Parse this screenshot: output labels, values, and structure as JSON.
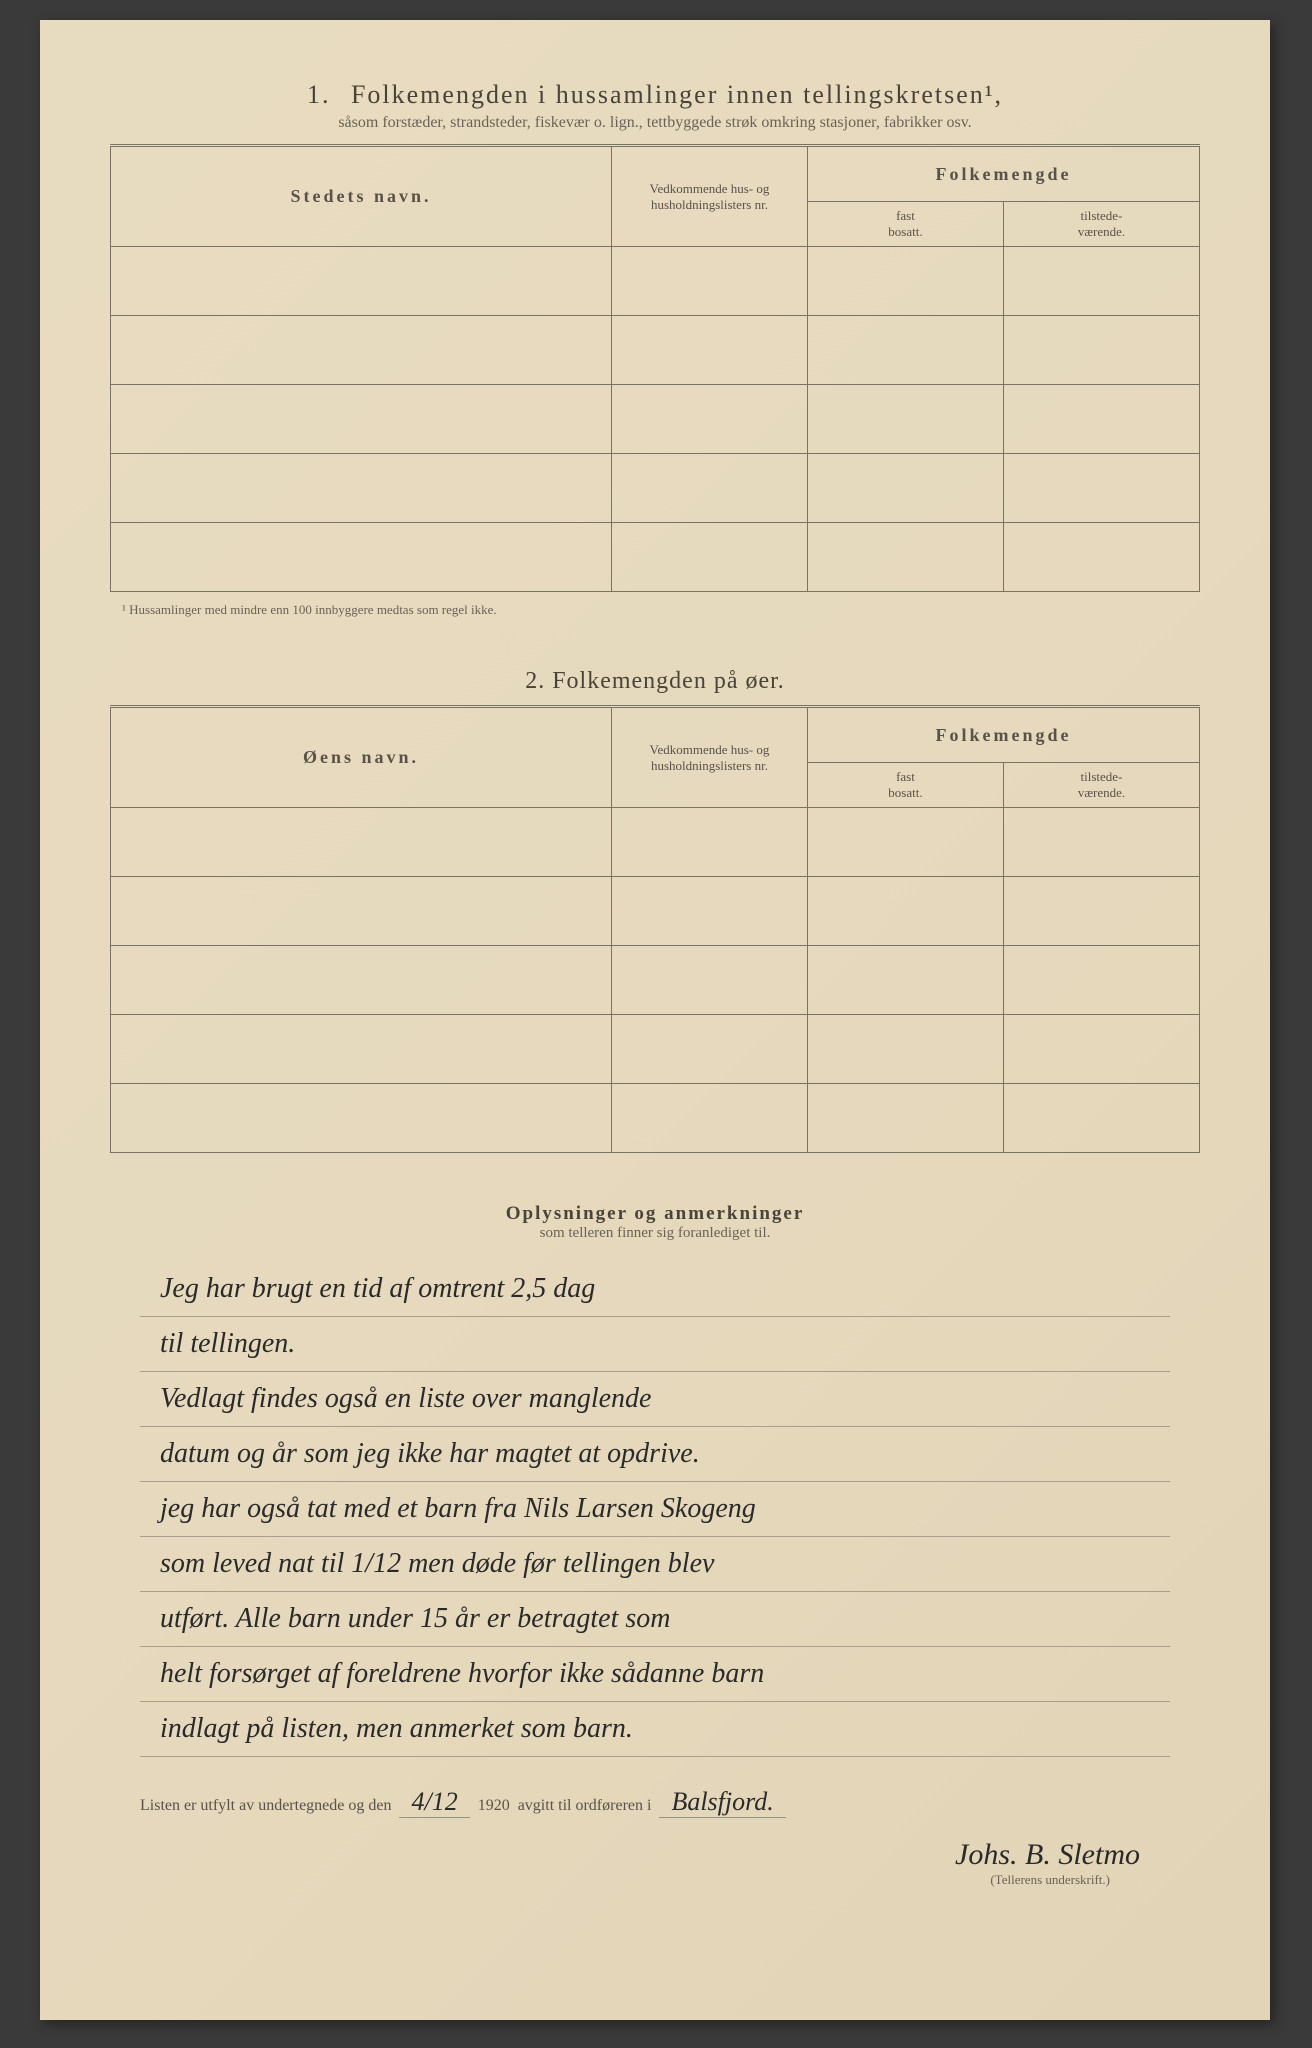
{
  "section1": {
    "number": "1.",
    "title": "Folkemengden i hussamlinger innen tellingskretsen¹,",
    "subtitle": "såsom forstæder, strandsteder, fiskevær o. lign., tettbyggede strøk omkring stasjoner, fabrikker osv.",
    "headers": {
      "name": "Stedets navn.",
      "lists": "Vedkommende hus- og husholdningslisters nr.",
      "pop_group": "Folkemengde",
      "fast": "fast",
      "fast2": "bosatt.",
      "tilstede": "tilstede-",
      "tilstede2": "værende."
    },
    "footnote": "¹ Hussamlinger med mindre enn 100 innbyggere medtas som regel ikke."
  },
  "section2": {
    "number": "2.",
    "title": "Folkemengden på øer.",
    "headers": {
      "name": "Øens navn.",
      "lists": "Vedkommende hus- og husholdningslisters nr.",
      "pop_group": "Folkemengde",
      "fast": "fast",
      "fast2": "bosatt.",
      "tilstede": "tilstede-",
      "tilstede2": "værende."
    }
  },
  "oplysninger": {
    "heading": "Oplysninger og anmerkninger",
    "sub": "som telleren finner sig foranlediget til.",
    "lines": [
      "Jeg har brugt en tid af omtrent 2,5 dag",
      "til tellingen.",
      "Vedlagt findes også en liste over manglende",
      "datum og år som jeg ikke har magtet at opdrive.",
      "jeg har også tat med et barn fra Nils Larsen Skogeng",
      "som leved nat til 1/12 men døde før tellingen blev",
      "utført. Alle barn under 15 år er betragtet som",
      "helt forsørget af foreldrene hvorfor ikke sådanne barn",
      "indlagt på listen, men anmerket som barn."
    ]
  },
  "bottom": {
    "prefix": "Listen er utfylt av undertegnede og den",
    "date": "4/12",
    "year": "1920",
    "mid": "avgitt til ordføreren i",
    "place": "Balsfjord.",
    "signature": "Johs. B. Sletmo",
    "sig_label": "(Tellerens underskrift.)"
  }
}
